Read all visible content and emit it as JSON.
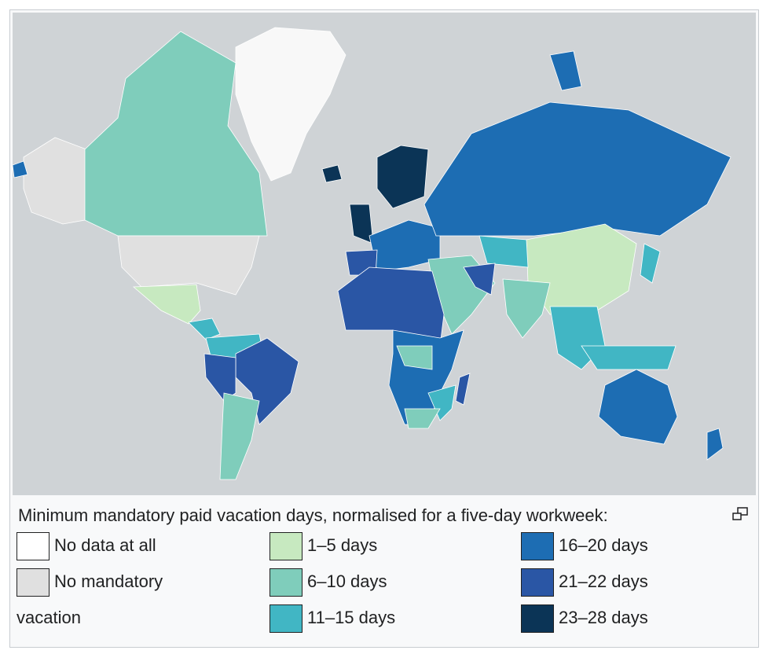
{
  "caption": "Minimum mandatory paid vacation days, normalised for a five-day workweek:",
  "legend": [
    {
      "label": "No data at all",
      "color": "#ffffff"
    },
    {
      "label": "No mandatory vacation",
      "color": "#e0e0e0"
    },
    {
      "label": "1–5 days",
      "color": "#c7e9c0"
    },
    {
      "label": "6–10 days",
      "color": "#7fcdbb"
    },
    {
      "label": "11–15 days",
      "color": "#41b6c4"
    },
    {
      "label": "16–20 days",
      "color": "#1d6db3"
    },
    {
      "label": "21–22 days",
      "color": "#2a56a5"
    },
    {
      "label": "23–28 days",
      "color": "#0b3456"
    }
  ]
}
